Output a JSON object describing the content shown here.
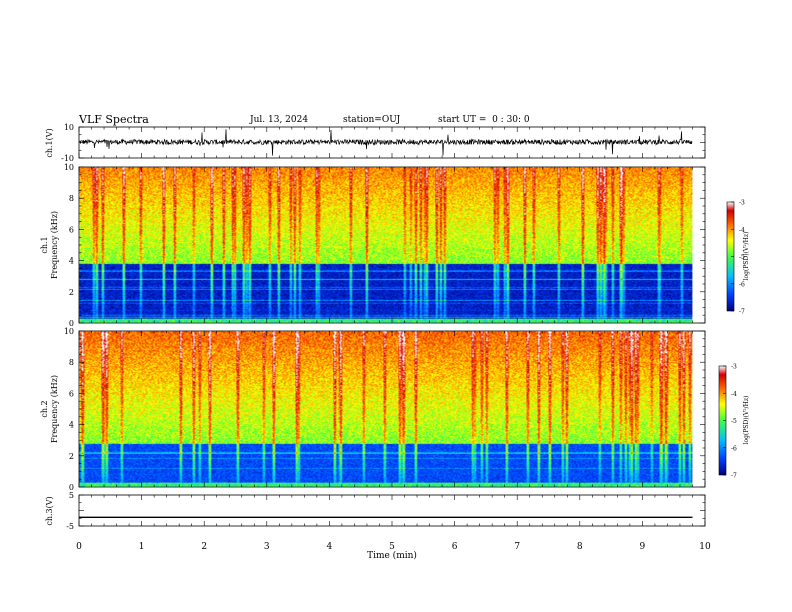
{
  "header": {
    "title": "VLF Spectra",
    "date": "Jul. 13, 2024",
    "station": "station=OUJ",
    "start_ut": "start UT =  0 : 30: 0"
  },
  "colorbar": {
    "label": "log(PSD)(V²/Hz)",
    "ticks": [
      "-3",
      "-4",
      "-5",
      "-6",
      "-7"
    ],
    "range": [
      -7,
      -3
    ],
    "colormap": [
      "#00007f",
      "#0040ff",
      "#00c0ff",
      "#40ff40",
      "#ffff00",
      "#ff6000",
      "#d00000",
      "#ffffff"
    ]
  },
  "chart_data": [
    {
      "type": "line",
      "name": "ch1-waveform",
      "ylabel": "ch.1(V)",
      "ylim": [
        -10,
        10
      ],
      "yticks": [
        "10",
        "-10"
      ],
      "xlim": [
        0,
        10
      ],
      "description_units": "volts vs minutes",
      "baseline": 0,
      "noise_amplitude": 2
    },
    {
      "type": "heatmap",
      "name": "ch1-spectrogram",
      "ylabel": "ch.1\nFrequency (kHz)",
      "ylabel_lines": [
        "ch.1",
        "Frequency (kHz)"
      ],
      "ylim": [
        0,
        10
      ],
      "yticks": [
        "0",
        "2",
        "4",
        "6",
        "8",
        "10"
      ],
      "xlim": [
        0,
        9.8
      ],
      "zlim": [
        -7,
        -3
      ]
    },
    {
      "type": "heatmap",
      "name": "ch2-spectrogram",
      "ylabel_lines": [
        "ch.2",
        "Frequency (kHz)"
      ],
      "ylim": [
        0,
        10
      ],
      "yticks": [
        "0",
        "2",
        "4",
        "6",
        "8",
        "10"
      ],
      "xlim": [
        0,
        9.8
      ],
      "zlim": [
        -7,
        -3
      ]
    },
    {
      "type": "line",
      "name": "ch3-waveform",
      "ylabel": "ch.3(V)",
      "ylim": [
        -5,
        5
      ],
      "yticks": [
        "5",
        "0",
        "-5"
      ],
      "xlim": [
        0,
        9.8
      ],
      "x": [
        0,
        9.8
      ],
      "y": [
        -2.2,
        -2.2
      ]
    }
  ],
  "xaxis": {
    "label": "Time (min)",
    "ticks": [
      "0",
      "1",
      "2",
      "3",
      "4",
      "5",
      "6",
      "7",
      "8",
      "9",
      "10"
    ],
    "xlim": [
      0,
      10
    ]
  }
}
